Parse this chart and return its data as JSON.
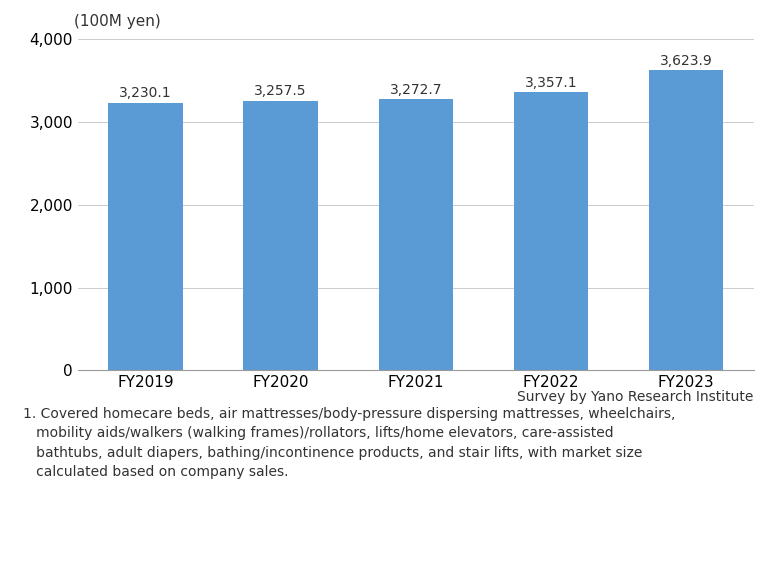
{
  "categories": [
    "FY2019",
    "FY2020",
    "FY2021",
    "FY2022",
    "FY2023"
  ],
  "values": [
    3230.1,
    3257.5,
    3272.7,
    3357.1,
    3623.9
  ],
  "bar_color": "#5B9BD5",
  "ylabel": "(100M yen)",
  "ylim": [
    0,
    4000
  ],
  "yticks": [
    0,
    1000,
    2000,
    3000,
    4000
  ],
  "bar_labels": [
    "3,230.1",
    "3,257.5",
    "3,272.7",
    "3,357.1",
    "3,623.9"
  ],
  "source_text": "Survey by Yano Research Institute",
  "footnote_line1": "1. Covered homecare beds, air mattresses/body-pressure dispersing mattresses, wheelchairs,",
  "footnote_line2": "   mobility aids/walkers (walking frames)/rollators, lifts/home elevators, care-assisted",
  "footnote_line3": "   bathtubs, adult diapers, bathing/incontinence products, and stair lifts, with market size",
  "footnote_line4": "   calculated based on company sales.",
  "background_color": "#FFFFFF",
  "label_fontsize": 10,
  "tick_fontsize": 11,
  "ylabel_fontsize": 11,
  "source_fontsize": 10,
  "footnote_fontsize": 10
}
